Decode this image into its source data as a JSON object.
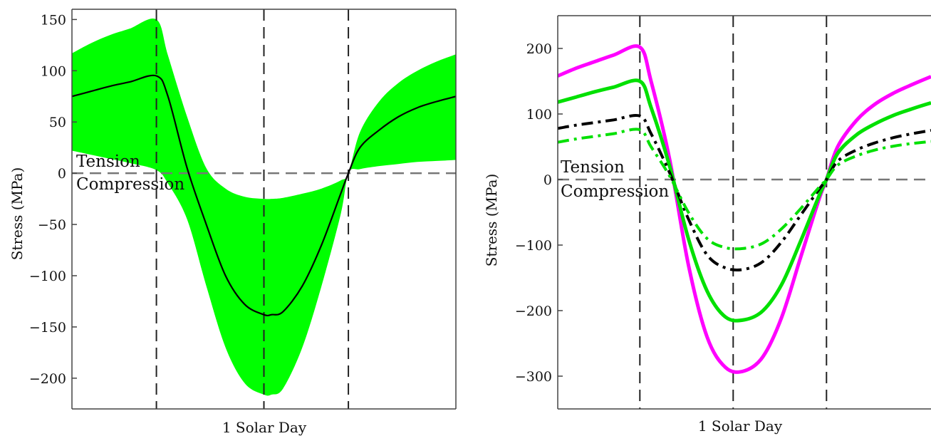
{
  "chart_data": [
    {
      "type": "area",
      "xlabel": "1 Solar Day",
      "ylabel": "Stress (MPa)",
      "xlim": [
        0,
        1
      ],
      "ylim": [
        -230,
        160
      ],
      "yticks": [
        150,
        100,
        50,
        0,
        -50,
        -100,
        -150,
        -200
      ],
      "ytick_labels": [
        "150",
        "100",
        "50",
        "0",
        "−50",
        "−100",
        "−150",
        "−200"
      ],
      "vlines": [
        0.22,
        0.5,
        0.72
      ],
      "hline": 0,
      "annotations": [
        "Tension",
        "Compression"
      ],
      "band": {
        "color": "#00ff00",
        "x": [
          0,
          0.05,
          0.1,
          0.15,
          0.22,
          0.25,
          0.3,
          0.35,
          0.4,
          0.45,
          0.5,
          0.52,
          0.55,
          0.6,
          0.65,
          0.7,
          0.72,
          0.75,
          0.8,
          0.85,
          0.9,
          0.95,
          1.0
        ],
        "upper": [
          117,
          127,
          135,
          141,
          150,
          115,
          55,
          5,
          -15,
          -23,
          -25,
          -25,
          -24,
          -20,
          -15,
          -7,
          0,
          40,
          70,
          88,
          100,
          109,
          116
        ],
        "lower": [
          22,
          18,
          14,
          10,
          3,
          -10,
          -45,
          -110,
          -170,
          -205,
          -216,
          -216,
          -210,
          -170,
          -110,
          -40,
          0,
          4,
          7,
          9,
          11,
          12,
          13
        ]
      },
      "series": [
        {
          "color": "#000000",
          "style": "solid",
          "x": [
            0,
            0.05,
            0.1,
            0.15,
            0.22,
            0.25,
            0.3,
            0.35,
            0.4,
            0.45,
            0.5,
            0.52,
            0.55,
            0.6,
            0.65,
            0.7,
            0.72,
            0.75,
            0.8,
            0.85,
            0.9,
            0.95,
            1.0
          ],
          "values": [
            75,
            80,
            85,
            89,
            95,
            75,
            5,
            -50,
            -100,
            -128,
            -138,
            -138,
            -135,
            -110,
            -70,
            -20,
            0,
            25,
            42,
            55,
            64,
            70,
            75
          ]
        }
      ]
    },
    {
      "type": "line",
      "xlabel": "1 Solar Day",
      "ylabel": "Stress (MPa)",
      "xlim": [
        0,
        1
      ],
      "ylim": [
        -350,
        250
      ],
      "yticks": [
        200,
        100,
        0,
        -100,
        -200,
        -300
      ],
      "ytick_labels": [
        "200",
        "100",
        "0",
        "−100",
        "−200",
        "−300"
      ],
      "vlines": [
        0.22,
        0.47,
        0.72
      ],
      "hline": 0,
      "annotations": [
        "Tension",
        "Compression"
      ],
      "series": [
        {
          "color": "#ff00ff",
          "style": "solid",
          "x": [
            0,
            0.05,
            0.1,
            0.15,
            0.22,
            0.25,
            0.3,
            0.35,
            0.4,
            0.45,
            0.5,
            0.55,
            0.6,
            0.65,
            0.7,
            0.72,
            0.75,
            0.8,
            0.85,
            0.9,
            0.95,
            1.0
          ],
          "values": [
            158,
            170,
            180,
            190,
            202,
            150,
            30,
            -130,
            -240,
            -287,
            -292,
            -270,
            -210,
            -120,
            -30,
            0,
            50,
            90,
            115,
            132,
            145,
            157
          ]
        },
        {
          "color": "#00e000",
          "style": "solid",
          "x": [
            0,
            0.05,
            0.1,
            0.15,
            0.22,
            0.25,
            0.3,
            0.35,
            0.4,
            0.45,
            0.5,
            0.55,
            0.6,
            0.65,
            0.7,
            0.72,
            0.75,
            0.8,
            0.85,
            0.9,
            0.95,
            1.0
          ],
          "values": [
            118,
            126,
            134,
            141,
            150,
            110,
            20,
            -90,
            -170,
            -210,
            -214,
            -200,
            -160,
            -95,
            -25,
            0,
            40,
            68,
            85,
            98,
            108,
            117
          ]
        },
        {
          "color": "#000000",
          "style": "dashdot",
          "x": [
            0,
            0.05,
            0.1,
            0.15,
            0.22,
            0.25,
            0.3,
            0.35,
            0.4,
            0.45,
            0.5,
            0.55,
            0.6,
            0.65,
            0.7,
            0.72,
            0.75,
            0.8,
            0.85,
            0.9,
            0.95,
            1.0
          ],
          "values": [
            78,
            83,
            87,
            91,
            97,
            70,
            10,
            -60,
            -115,
            -135,
            -137,
            -125,
            -95,
            -55,
            -15,
            0,
            28,
            45,
            56,
            64,
            70,
            75
          ]
        },
        {
          "color": "#00e000",
          "style": "dashdot",
          "x": [
            0,
            0.05,
            0.1,
            0.15,
            0.22,
            0.25,
            0.3,
            0.35,
            0.4,
            0.45,
            0.5,
            0.55,
            0.6,
            0.65,
            0.7,
            0.72,
            0.75,
            0.8,
            0.85,
            0.9,
            0.95,
            1.0
          ],
          "values": [
            57,
            62,
            66,
            70,
            76,
            50,
            5,
            -50,
            -90,
            -104,
            -105,
            -97,
            -75,
            -45,
            -12,
            0,
            22,
            36,
            45,
            51,
            55,
            58
          ]
        }
      ]
    }
  ]
}
